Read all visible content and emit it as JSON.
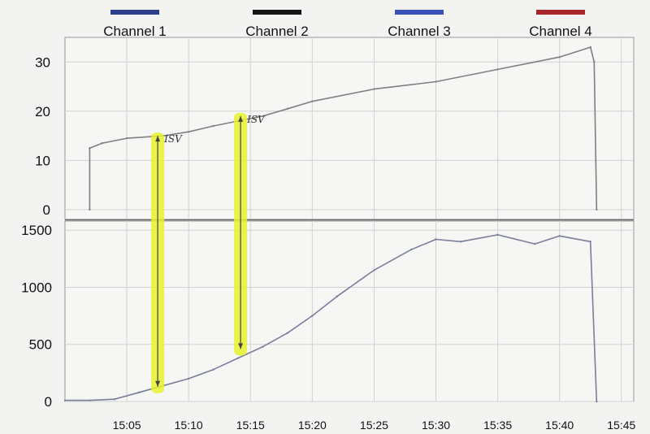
{
  "chart_data": [
    {
      "type": "line",
      "title": "",
      "xlabel": "",
      "ylabel": "",
      "ylim": [
        -2,
        35
      ],
      "yticks": [
        0,
        10,
        20,
        30
      ],
      "xticks": [
        "15:05",
        "15:10",
        "15:15",
        "15:20",
        "15:25",
        "15:30",
        "15:35",
        "15:40",
        "15:45"
      ],
      "x": [
        "15:02",
        "15:02",
        "15:03",
        "15:05",
        "15:08",
        "15:10",
        "15:12",
        "15:14",
        "15:16",
        "15:18",
        "15:20",
        "15:25",
        "15:30",
        "15:35",
        "15:40",
        "15:42.5",
        "15:42.8",
        "15:43"
      ],
      "series": [
        {
          "name": "",
          "color": "#808080",
          "values": [
            0,
            12.5,
            13.5,
            14.5,
            15,
            15.8,
            17,
            18,
            19,
            20.5,
            22,
            24.5,
            26,
            28.5,
            31,
            33,
            30,
            0
          ]
        }
      ],
      "grid": true,
      "annotations": [
        {
          "text": "ISV",
          "x": "15:07.5",
          "y": 14
        },
        {
          "text": "ISV",
          "x": "15:14.2",
          "y": 18
        }
      ]
    },
    {
      "type": "line",
      "title": "",
      "xlabel": "",
      "ylabel": "",
      "ylim": [
        0,
        1580
      ],
      "yticks": [
        0,
        500,
        1000,
        1500
      ],
      "xticks": [
        "15:05",
        "15:10",
        "15:15",
        "15:20",
        "15:25",
        "15:30",
        "15:35",
        "15:40",
        "15:45"
      ],
      "x": [
        "15:00",
        "15:02",
        "15:04",
        "15:06",
        "15:08",
        "15:10",
        "15:12",
        "15:14",
        "15:16",
        "15:18",
        "15:20",
        "15:22",
        "15:25",
        "15:28",
        "15:30",
        "15:32",
        "15:35",
        "15:38",
        "15:40",
        "15:42.5",
        "15:43"
      ],
      "series": [
        {
          "name": "",
          "color": "#7a7f9a",
          "values": [
            10,
            10,
            20,
            80,
            140,
            200,
            280,
            380,
            480,
            600,
            750,
            920,
            1150,
            1330,
            1420,
            1400,
            1460,
            1380,
            1450,
            1400,
            0
          ]
        }
      ],
      "grid": true
    }
  ],
  "legend": [
    {
      "label": "Channel 1",
      "color": "#2b3f8c"
    },
    {
      "label": "Channel 2",
      "color": "#151515"
    },
    {
      "label": "Channel 3",
      "color": "#3a52b8"
    },
    {
      "label": "Channel 4",
      "color": "#a8272a"
    }
  ],
  "highlights": [
    {
      "x": "15:07.5",
      "from_top_y": 15,
      "to_bottom_y": 130
    },
    {
      "x": "15:14.2",
      "from_top_y": 19,
      "to_bottom_y": 460
    }
  ],
  "highlight_color": "#e6f22a"
}
